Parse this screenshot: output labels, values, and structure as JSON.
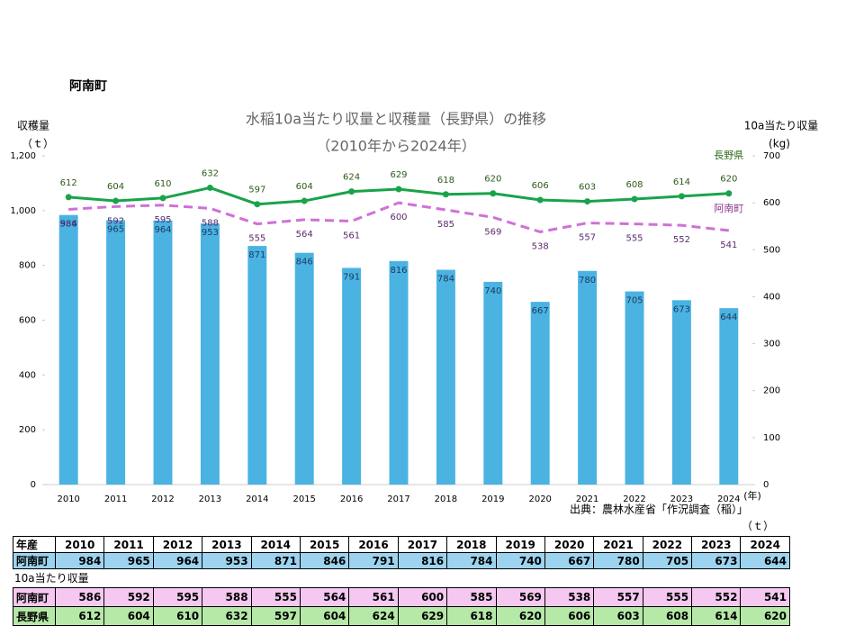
{
  "header": {
    "title": "阿南町"
  },
  "chart_data": {
    "type": "bar",
    "title": "水稲10a当たり収量と収穫量（長野県）の推移",
    "subtitle": "（2010年から2024年）",
    "y_label": "収穫量",
    "y_unit": "（ｔ）",
    "y2_label": "10a当たり収量",
    "y2_unit": "(kg)",
    "x_unit": "(年)",
    "source": "出典：農林水産省「作況調査（稲）」",
    "categories": [
      "2010",
      "2011",
      "2012",
      "2013",
      "2014",
      "2015",
      "2016",
      "2017",
      "2018",
      "2019",
      "2020",
      "2021",
      "2022",
      "2023",
      "2024"
    ],
    "ylim": [
      0,
      1200
    ],
    "yticks": [
      0,
      200,
      400,
      600,
      800,
      {
        "value": 1000,
        "label": "1,000"
      },
      {
        "value": 1200,
        "label": "1,200"
      }
    ],
    "y2lim": [
      0,
      700
    ],
    "y2ticks": [
      0,
      100,
      200,
      300,
      400,
      500,
      600,
      700
    ],
    "series": [
      {
        "type": "bar",
        "color": "#4ab3e2",
        "values": [
          984,
          965,
          964,
          953,
          871,
          846,
          791,
          816,
          784,
          740,
          667,
          780,
          705,
          673,
          644
        ]
      },
      {
        "type": "line",
        "name": "長野県",
        "color": "#1aa34a",
        "axis": "y2",
        "values": [
          612,
          604,
          610,
          632,
          597,
          604,
          624,
          629,
          618,
          620,
          606,
          603,
          608,
          614,
          620
        ]
      },
      {
        "type": "line",
        "name": "阿南町",
        "color": "#d070d8",
        "axis": "y2",
        "dashed": true,
        "values": [
          586,
          592,
          595,
          588,
          555,
          564,
          561,
          600,
          585,
          569,
          538,
          557,
          555,
          552,
          541
        ]
      }
    ]
  },
  "table": {
    "unit": "（ｔ）",
    "corner": "年産",
    "row_label": "阿南町",
    "caption": "10a当たり収量"
  }
}
